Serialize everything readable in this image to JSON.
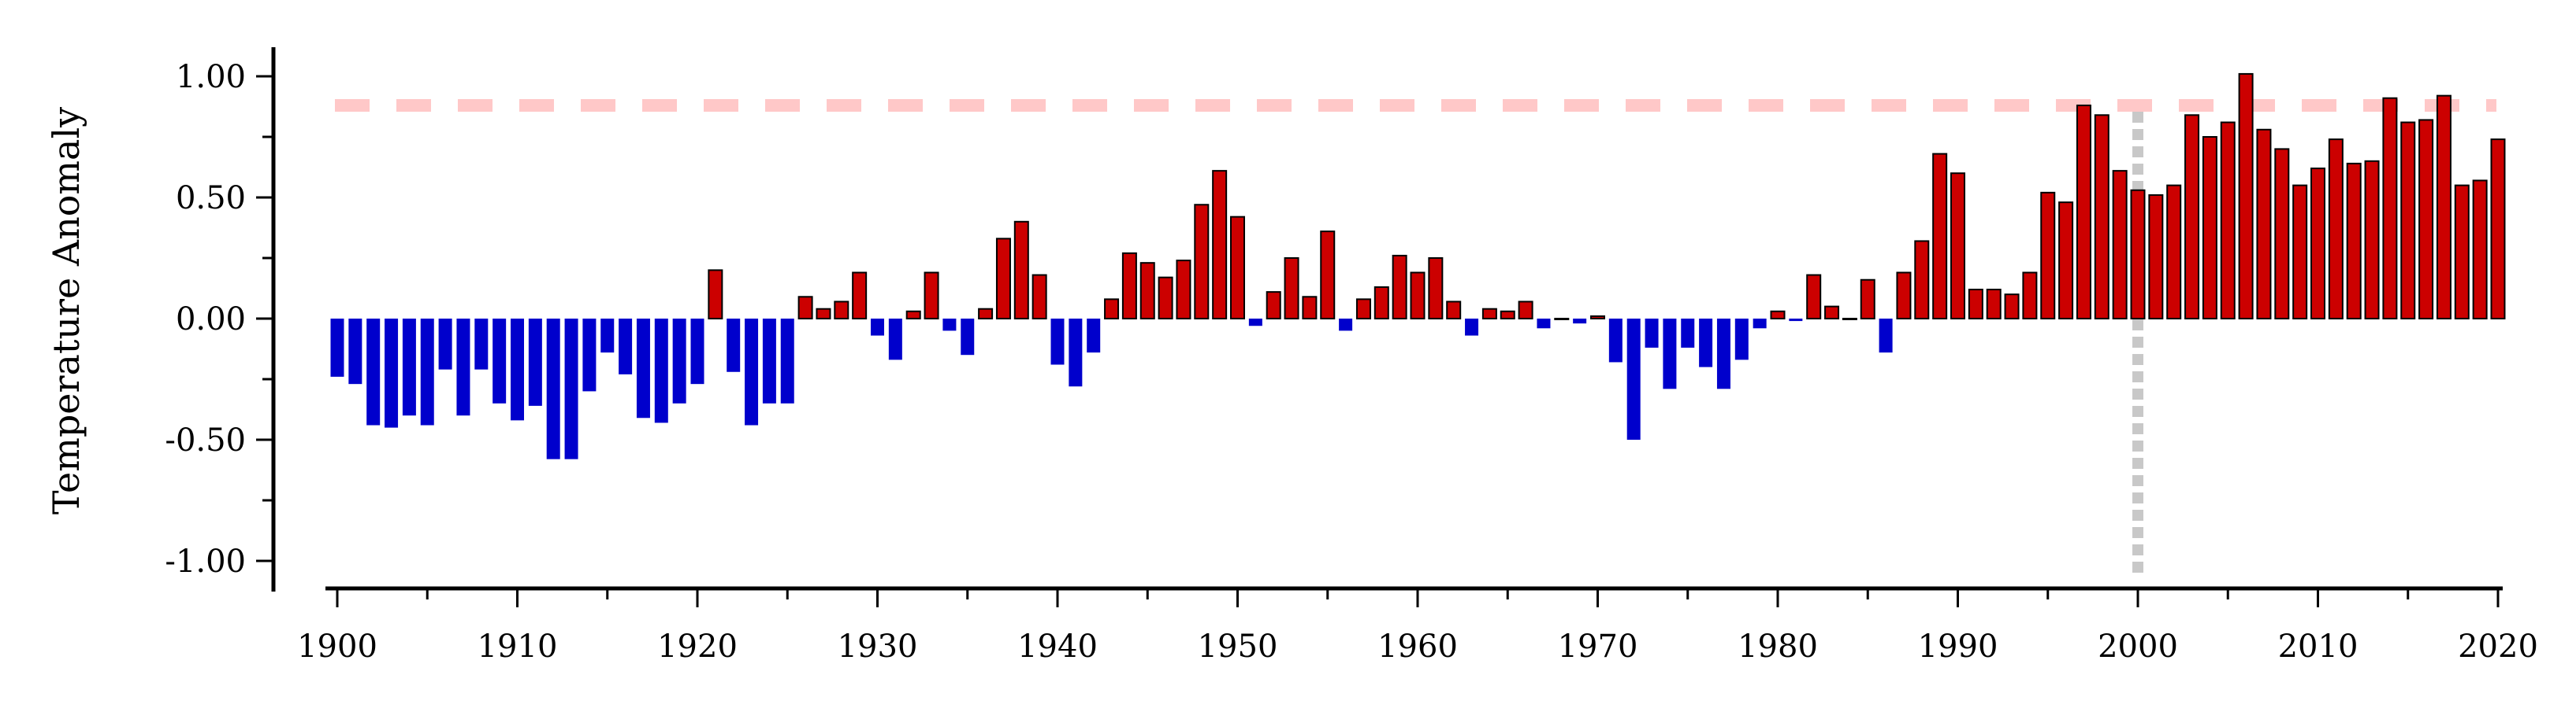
{
  "chart_data": {
    "type": "bar",
    "title": "",
    "xlabel": "",
    "ylabel": "Temperature Anomaly",
    "xlim": [
      1899.5,
      2020.5
    ],
    "ylim": [
      -1.1,
      1.1
    ],
    "x_ticks": [
      1900,
      1910,
      1920,
      1930,
      1940,
      1950,
      1960,
      1970,
      1980,
      1990,
      2000,
      2010,
      2020
    ],
    "x_tick_labels": [
      "1900",
      "1910",
      "1920",
      "1930",
      "1940",
      "1950",
      "1960",
      "1970",
      "1980",
      "1990",
      "2000",
      "2010",
      "2020"
    ],
    "y_ticks": [
      1.0,
      0.5,
      0.0,
      -0.5,
      -1.0
    ],
    "y_tick_labels": [
      "1.00",
      "0.50",
      "0.00",
      "-0.50",
      "-1.00"
    ],
    "grid": false,
    "legend": "none",
    "reference_lines": [
      {
        "orientation": "horizontal",
        "value": 0.88,
        "style": "dashed",
        "color": "#ffc8c8"
      },
      {
        "orientation": "vertical",
        "value": 2000,
        "style": "dotted",
        "color": "#c8c8c8"
      }
    ],
    "colors": {
      "positive": "#cc0000",
      "negative": "#0000cc",
      "positive_edge": "#000000"
    },
    "x": [
      1900,
      1901,
      1902,
      1903,
      1904,
      1905,
      1906,
      1907,
      1908,
      1909,
      1910,
      1911,
      1912,
      1913,
      1914,
      1915,
      1916,
      1917,
      1918,
      1919,
      1920,
      1921,
      1922,
      1923,
      1924,
      1925,
      1926,
      1927,
      1928,
      1929,
      1930,
      1931,
      1932,
      1933,
      1934,
      1935,
      1936,
      1937,
      1938,
      1939,
      1940,
      1941,
      1942,
      1943,
      1944,
      1945,
      1946,
      1947,
      1948,
      1949,
      1950,
      1951,
      1952,
      1953,
      1954,
      1955,
      1956,
      1957,
      1958,
      1959,
      1960,
      1961,
      1962,
      1963,
      1964,
      1965,
      1966,
      1967,
      1968,
      1969,
      1970,
      1971,
      1972,
      1973,
      1974,
      1975,
      1976,
      1977,
      1978,
      1979,
      1980,
      1981,
      1982,
      1983,
      1984,
      1985,
      1986,
      1987,
      1988,
      1989,
      1990,
      1991,
      1992,
      1993,
      1994,
      1995,
      1996,
      1997,
      1998,
      1999,
      2000,
      2001,
      2002,
      2003,
      2004,
      2005,
      2006,
      2007,
      2008,
      2009,
      2010,
      2011,
      2012,
      2013,
      2014,
      2015,
      2016,
      2017,
      2018,
      2019,
      2020
    ],
    "values": [
      -0.24,
      -0.27,
      -0.44,
      -0.45,
      -0.4,
      -0.44,
      -0.21,
      -0.4,
      -0.21,
      -0.35,
      -0.42,
      -0.36,
      -0.58,
      -0.58,
      -0.3,
      -0.14,
      -0.23,
      -0.41,
      -0.43,
      -0.35,
      -0.27,
      0.2,
      -0.22,
      -0.44,
      -0.35,
      -0.35,
      0.09,
      0.04,
      0.07,
      0.19,
      -0.07,
      -0.17,
      0.03,
      0.19,
      -0.05,
      -0.15,
      0.04,
      0.33,
      0.4,
      0.18,
      -0.19,
      -0.28,
      -0.14,
      0.08,
      0.27,
      0.23,
      0.17,
      0.24,
      0.47,
      0.61,
      0.42,
      -0.03,
      0.11,
      0.25,
      0.09,
      0.36,
      -0.05,
      0.08,
      0.13,
      0.26,
      0.19,
      0.25,
      0.07,
      -0.07,
      0.04,
      0.03,
      0.07,
      -0.04,
      0.0,
      -0.02,
      0.01,
      -0.18,
      -0.5,
      -0.12,
      -0.29,
      -0.12,
      -0.2,
      -0.29,
      -0.17,
      -0.04,
      0.03,
      -0.01,
      0.18,
      0.05,
      0.0,
      0.16,
      -0.14,
      0.19,
      0.32,
      0.68,
      0.6,
      0.12,
      0.12,
      0.1,
      0.19,
      0.52,
      0.48,
      0.88,
      0.84,
      0.61,
      0.53,
      0.51,
      0.55,
      0.84,
      0.75,
      0.81,
      1.01,
      0.78,
      0.7,
      0.55,
      0.62,
      0.74,
      0.64,
      0.65,
      0.91,
      0.81,
      0.82,
      0.92,
      0.55,
      0.57,
      0.74
    ]
  }
}
